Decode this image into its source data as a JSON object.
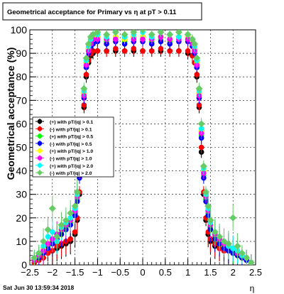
{
  "chart_data": {
    "type": "scatter",
    "title": "Geometrical acceptance for Primary vs   η at pT > 0.11",
    "xlabel": "η",
    "ylabel": "Geometrical acceptance (%)",
    "xlim": [
      -2.5,
      2.5
    ],
    "ylim": [
      0,
      100
    ],
    "x_ticks": [
      "−2.5",
      "−2",
      "−1.5",
      "−1",
      "−0.5",
      "0",
      "0.5",
      "1",
      "1.5",
      "2",
      "2.5"
    ],
    "y_ticks": [
      "0",
      "10",
      "20",
      "30",
      "40",
      "50",
      "60",
      "70",
      "80",
      "90",
      "100"
    ],
    "grid": true,
    "legend_position": "left",
    "footer": "Sat Jun 30 13:59:34 2018",
    "series": [
      {
        "name": "(+) with pT/|q| > 0.1",
        "color": "#000000",
        "marker": "circle",
        "x": [
          -2.4,
          -2.3,
          -2.2,
          -2.1,
          -2.0,
          -1.9,
          -1.8,
          -1.7,
          -1.6,
          -1.5,
          -1.45,
          -1.4,
          -1.35,
          -1.3,
          -1.25,
          -1.2,
          -1.15,
          -1.1,
          -1.0,
          -0.8,
          -0.6,
          -0.4,
          -0.2,
          0.0,
          0.2,
          0.4,
          0.6,
          0.8,
          1.0,
          1.1,
          1.15,
          1.2,
          1.25,
          1.3,
          1.35,
          1.4,
          1.45,
          1.5,
          1.6,
          1.7,
          1.8,
          1.9,
          2.0,
          2.1,
          2.2,
          2.3,
          2.4
        ],
        "y": [
          1,
          2,
          3,
          5,
          6,
          7,
          8,
          9,
          10,
          13,
          19,
          30,
          48,
          67,
          80,
          86,
          89,
          90,
          91,
          91,
          91,
          91,
          91,
          91,
          91,
          91,
          91,
          91,
          90,
          89,
          86,
          80,
          67,
          48,
          30,
          19,
          13,
          10,
          8,
          7,
          6,
          6,
          5,
          4,
          3,
          2,
          1
        ]
      },
      {
        "name": "(-) with pT/|q| > 0.1",
        "color": "#ff0000",
        "marker": "circle",
        "x": [
          -2.4,
          -2.3,
          -2.2,
          -2.1,
          -2.0,
          -1.9,
          -1.8,
          -1.7,
          -1.6,
          -1.5,
          -1.45,
          -1.4,
          -1.35,
          -1.3,
          -1.25,
          -1.2,
          -1.15,
          -1.1,
          -1.0,
          -0.8,
          -0.6,
          -0.4,
          -0.2,
          0.0,
          0.2,
          0.4,
          0.6,
          0.8,
          1.0,
          1.1,
          1.15,
          1.2,
          1.25,
          1.3,
          1.35,
          1.4,
          1.45,
          1.5,
          1.6,
          1.7,
          1.8,
          1.9,
          2.0,
          2.1,
          2.2,
          2.3,
          2.4
        ],
        "y": [
          1,
          2,
          3,
          5,
          6,
          8,
          9,
          10,
          11,
          14,
          20,
          31,
          50,
          68,
          81,
          87,
          90,
          91,
          91,
          91,
          92,
          91,
          92,
          91,
          91,
          92,
          91,
          91,
          91,
          89,
          86,
          81,
          68,
          50,
          31,
          20,
          14,
          11,
          9,
          7,
          6,
          6,
          5,
          4,
          3,
          2,
          1
        ]
      },
      {
        "name": "(+) with pT/|q| > 0.5",
        "color": "#00ff00",
        "marker": "circle",
        "x": [
          -2.4,
          -2.3,
          -2.2,
          -2.1,
          -2.0,
          -1.9,
          -1.8,
          -1.7,
          -1.6,
          -1.5,
          -1.45,
          -1.4,
          -1.35,
          -1.3,
          -1.25,
          -1.2,
          -1.15,
          -1.1,
          -1.0,
          -0.8,
          -0.6,
          -0.4,
          -0.2,
          0.0,
          0.2,
          0.4,
          0.6,
          0.8,
          1.0,
          1.1,
          1.15,
          1.2,
          1.25,
          1.3,
          1.35,
          1.4,
          1.45,
          1.5,
          1.6,
          1.7,
          1.8,
          1.9,
          2.0,
          2.1,
          2.2,
          2.3,
          2.4
        ],
        "y": [
          2,
          4,
          6,
          8,
          10,
          12,
          14,
          16,
          18,
          22,
          28,
          38,
          55,
          72,
          85,
          91,
          94,
          95,
          96,
          95,
          96,
          95,
          96,
          96,
          95,
          96,
          95,
          96,
          96,
          94,
          91,
          85,
          72,
          55,
          38,
          28,
          22,
          16,
          12,
          10,
          8,
          7,
          6,
          5,
          4,
          3,
          1
        ]
      },
      {
        "name": "(-) with pT/|q| > 0.5",
        "color": "#0000ff",
        "marker": "circle",
        "x": [
          -2.4,
          -2.3,
          -2.2,
          -2.1,
          -2.0,
          -1.9,
          -1.8,
          -1.7,
          -1.6,
          -1.5,
          -1.45,
          -1.4,
          -1.35,
          -1.3,
          -1.25,
          -1.2,
          -1.15,
          -1.1,
          -1.0,
          -0.8,
          -0.6,
          -0.4,
          -0.2,
          0.0,
          0.2,
          0.4,
          0.6,
          0.8,
          1.0,
          1.1,
          1.15,
          1.2,
          1.25,
          1.3,
          1.35,
          1.4,
          1.45,
          1.5,
          1.6,
          1.7,
          1.8,
          1.9,
          2.0,
          2.1,
          2.2,
          2.3,
          2.4
        ],
        "y": [
          2,
          3,
          5,
          7,
          9,
          11,
          13,
          15,
          17,
          21,
          27,
          37,
          54,
          71,
          84,
          90,
          93,
          94,
          95,
          94,
          95,
          94,
          95,
          95,
          94,
          95,
          94,
          95,
          95,
          93,
          90,
          84,
          71,
          54,
          37,
          27,
          21,
          15,
          11,
          9,
          7,
          6,
          5,
          4,
          3,
          2,
          1
        ]
      },
      {
        "name": "(+) with pT/|q| > 1.0",
        "color": "#ffff00",
        "marker": "circle",
        "x": [
          -2.4,
          -2.3,
          -2.2,
          -2.1,
          -2.0,
          -1.9,
          -1.8,
          -1.7,
          -1.6,
          -1.5,
          -1.45,
          -1.4,
          -1.35,
          -1.3,
          -1.25,
          -1.2,
          -1.15,
          -1.1,
          -1.0,
          -0.8,
          -0.6,
          -0.4,
          -0.2,
          0.0,
          0.2,
          0.4,
          0.6,
          0.8,
          1.0,
          1.1,
          1.15,
          1.2,
          1.25,
          1.3,
          1.35,
          1.4,
          1.45,
          1.5,
          1.6,
          1.7,
          1.8,
          1.9,
          2.0,
          2.1,
          2.2,
          2.3,
          2.4
        ],
        "y": [
          2,
          4,
          7,
          9,
          11,
          13,
          15,
          17,
          19,
          23,
          29,
          40,
          57,
          73,
          86,
          92,
          95,
          96,
          97,
          96,
          97,
          96,
          97,
          97,
          96,
          97,
          96,
          97,
          97,
          95,
          92,
          86,
          73,
          57,
          40,
          29,
          23,
          17,
          13,
          11,
          9,
          8,
          7,
          5,
          4,
          3,
          1
        ]
      },
      {
        "name": "(-) with pT/|q| > 1.0",
        "color": "#ff00ff",
        "marker": "circle",
        "x": [
          -2.4,
          -2.3,
          -2.2,
          -2.1,
          -2.0,
          -1.9,
          -1.8,
          -1.7,
          -1.6,
          -1.5,
          -1.45,
          -1.4,
          -1.35,
          -1.3,
          -1.25,
          -1.2,
          -1.15,
          -1.1,
          -1.0,
          -0.8,
          -0.6,
          -0.4,
          -0.2,
          0.0,
          0.2,
          0.4,
          0.6,
          0.8,
          1.0,
          1.1,
          1.15,
          1.2,
          1.25,
          1.3,
          1.35,
          1.4,
          1.45,
          1.5,
          1.6,
          1.7,
          1.8,
          1.9,
          2.0,
          2.1,
          2.2,
          2.3,
          2.4
        ],
        "y": [
          2,
          4,
          6,
          9,
          11,
          13,
          15,
          17,
          19,
          23,
          29,
          39,
          56,
          72,
          85,
          91,
          94,
          96,
          96,
          96,
          96,
          97,
          96,
          96,
          96,
          97,
          96,
          96,
          96,
          94,
          91,
          85,
          72,
          56,
          39,
          29,
          23,
          17,
          13,
          11,
          9,
          8,
          7,
          5,
          4,
          3,
          1
        ]
      },
      {
        "name": "(+) with pT/|q| > 2.0",
        "color": "#00ffff",
        "marker": "circle",
        "x": [
          -2.4,
          -2.3,
          -2.2,
          -2.1,
          -2.0,
          -1.9,
          -1.8,
          -1.7,
          -1.6,
          -1.5,
          -1.45,
          -1.4,
          -1.35,
          -1.3,
          -1.25,
          -1.2,
          -1.15,
          -1.1,
          -1.0,
          -0.8,
          -0.6,
          -0.4,
          -0.2,
          0.0,
          0.2,
          0.4,
          0.6,
          0.8,
          1.0,
          1.1,
          1.15,
          1.2,
          1.25,
          1.3,
          1.35,
          1.4,
          1.45,
          1.5,
          1.6,
          1.7,
          1.8,
          1.9,
          2.0,
          2.1,
          2.2,
          2.3,
          2.4
        ],
        "y": [
          3,
          5,
          8,
          12,
          14,
          10,
          16,
          18,
          20,
          24,
          30,
          41,
          58,
          74,
          87,
          93,
          96,
          98,
          98,
          97,
          99,
          97,
          98,
          99,
          97,
          99,
          98,
          97,
          98,
          96,
          93,
          87,
          74,
          58,
          41,
          30,
          24,
          18,
          14,
          12,
          10,
          8,
          7,
          6,
          4,
          3,
          1
        ]
      },
      {
        "name": "(-) with pT/|q| > 2.0",
        "color": "#66cc66",
        "marker": "diamond",
        "x": [
          -2.4,
          -2.3,
          -2.2,
          -2.1,
          -2.0,
          -1.9,
          -1.8,
          -1.7,
          -1.6,
          -1.5,
          -1.45,
          -1.4,
          -1.35,
          -1.3,
          -1.25,
          -1.2,
          -1.15,
          -1.1,
          -1.0,
          -0.8,
          -0.6,
          -0.4,
          -0.2,
          0.0,
          0.2,
          0.4,
          0.6,
          0.8,
          1.0,
          1.1,
          1.15,
          1.2,
          1.25,
          1.3,
          1.35,
          1.4,
          1.45,
          1.5,
          1.6,
          1.7,
          1.8,
          1.9,
          2.0,
          2.1,
          2.2,
          2.3,
          2.4
        ],
        "y": [
          3,
          5,
          10,
          15,
          24,
          12,
          17,
          19,
          22,
          25,
          31,
          42,
          60,
          75,
          88,
          94,
          97,
          98,
          99,
          98,
          99,
          98,
          99,
          100,
          98,
          99,
          98,
          99,
          98,
          96,
          94,
          88,
          75,
          60,
          42,
          31,
          25,
          19,
          14,
          12,
          10,
          9,
          20,
          8,
          5,
          3,
          1
        ]
      }
    ]
  }
}
